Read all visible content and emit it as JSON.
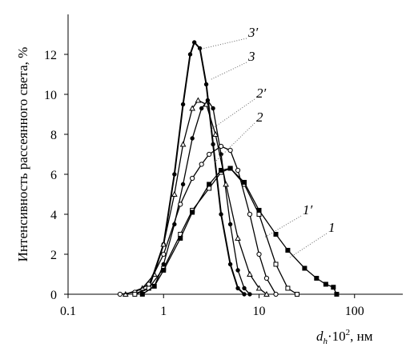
{
  "chart_data": {
    "type": "line",
    "y_label": "Интенсивность рассеянного света, %",
    "x_label": [
      "d",
      "h",
      "·10",
      "2",
      ", нм"
    ],
    "log_x": true,
    "xlim": [
      0.1,
      320
    ],
    "xticks": [
      0.1,
      1,
      10,
      100
    ],
    "ylim": [
      0,
      14
    ],
    "yticks": [
      0,
      2,
      4,
      6,
      8,
      10,
      12
    ],
    "series": [
      {
        "name": "3′",
        "color": "#000000",
        "marker": "dot",
        "x": [
          0.5,
          0.7,
          1,
          1.3,
          1.6,
          1.9,
          2.1,
          2.4,
          2.8,
          3.3,
          4,
          5,
          6,
          7
        ],
        "values": [
          0,
          0.3,
          2.5,
          6,
          9.5,
          12,
          12.6,
          12.3,
          10.5,
          7.5,
          4,
          1.5,
          0.3,
          0
        ]
      },
      {
        "name": "3",
        "color": "#000000",
        "marker": "dot",
        "x": [
          0.6,
          0.8,
          1,
          1.3,
          1.6,
          2,
          2.5,
          2.9,
          3.3,
          4,
          5,
          6,
          7,
          8
        ],
        "values": [
          0,
          0.4,
          1.5,
          3.5,
          5.5,
          7.8,
          9.3,
          9.7,
          9.3,
          7,
          3.5,
          1.2,
          0.3,
          0
        ]
      },
      {
        "name": "2′",
        "color": "#000000",
        "marker": "triangle",
        "x": [
          0.4,
          0.6,
          0.8,
          1,
          1.3,
          1.6,
          2,
          2.3,
          2.8,
          3.5,
          4.5,
          6,
          8,
          10,
          12
        ],
        "values": [
          0,
          0.3,
          1,
          2.5,
          5,
          7.5,
          9.3,
          9.7,
          9.5,
          8,
          5.5,
          2.8,
          1,
          0.3,
          0
        ]
      },
      {
        "name": "2",
        "color": "#000000",
        "marker": "circle",
        "x": [
          0.35,
          0.5,
          0.7,
          1,
          1.5,
          2,
          2.5,
          3,
          4,
          5,
          6,
          8,
          10,
          12,
          15
        ],
        "values": [
          0,
          0.1,
          0.5,
          2,
          4.5,
          5.8,
          6.5,
          7,
          7.4,
          7.2,
          6.2,
          4,
          2,
          0.8,
          0
        ]
      },
      {
        "name": "1′",
        "color": "#000000",
        "marker": "square",
        "x": [
          0.5,
          0.7,
          1,
          1.5,
          2,
          3,
          4,
          5,
          7,
          10,
          15,
          20,
          25
        ],
        "values": [
          0,
          0.3,
          1.3,
          3,
          4.2,
          5.3,
          6.1,
          6.3,
          5.5,
          4,
          1.5,
          0.3,
          0
        ]
      },
      {
        "name": "1",
        "color": "#000000",
        "marker": "filled-square",
        "x": [
          0.6,
          0.8,
          1,
          1.5,
          2,
          3,
          4,
          5,
          7,
          10,
          15,
          20,
          30,
          40,
          50,
          60,
          65
        ],
        "values": [
          0,
          0.4,
          1.2,
          2.8,
          4.1,
          5.5,
          6.2,
          6.3,
          5.6,
          4.2,
          3,
          2.2,
          1.3,
          0.8,
          0.5,
          0.35,
          0
        ]
      }
    ]
  }
}
